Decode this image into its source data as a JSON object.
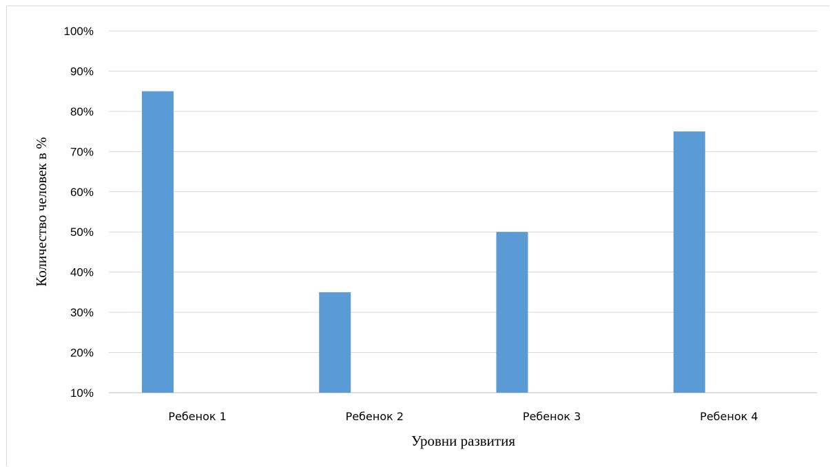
{
  "chart_data": {
    "type": "bar",
    "categories": [
      "Ребенок 1",
      "Ребенок 2",
      "Ребенок 3",
      "Ребенок 4"
    ],
    "values": [
      85,
      35,
      50,
      75
    ],
    "xlabel": "Уровни развития",
    "ylabel": "Количество человек в %",
    "ylim": [
      10,
      100
    ],
    "yticks": [
      10,
      20,
      30,
      40,
      50,
      60,
      70,
      80,
      90,
      100
    ],
    "ytick_suffix": "%",
    "grid": true,
    "legend": "none",
    "colors": {
      "bar": "#5b9bd5",
      "grid": "#d9d9d9",
      "axis": "#bfbfbf"
    }
  }
}
